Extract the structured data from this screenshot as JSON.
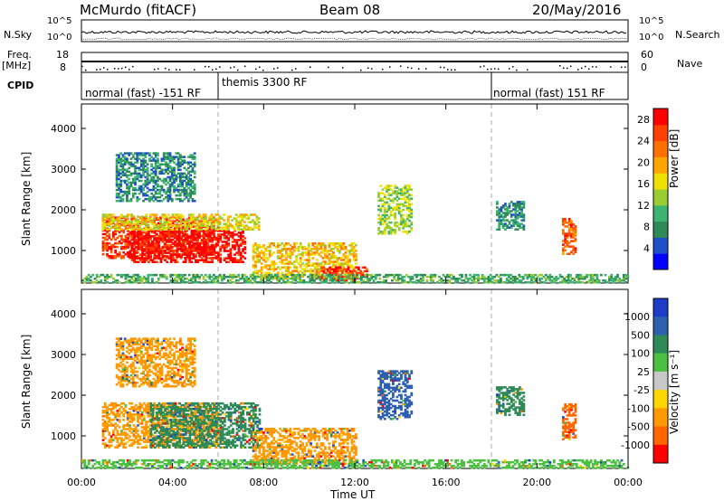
{
  "header": {
    "station": "McMurdo (fitACF)",
    "beam": "Beam 08",
    "date": "20/May/2016"
  },
  "strip_labels": {
    "nsky": "N.Sky",
    "nsky_ticks": [
      "10^5",
      "10^0"
    ],
    "nsearch": "N.Search",
    "nsearch_ticks": [
      "10^5",
      "10^0"
    ],
    "freq": "Freq.",
    "freq_unit": "[MHz]",
    "freq_ticks": [
      "18",
      "8"
    ],
    "nave": "Nave",
    "nave_ticks": [
      "60",
      "0"
    ],
    "cpid": "CPID"
  },
  "modes": [
    {
      "label": "normal (fast) -151 RF",
      "start_hour": 0
    },
    {
      "label": "themis 3300 RF",
      "start_hour": 6
    },
    {
      "label": "normal (fast) 151 RF",
      "start_hour": 18
    }
  ],
  "colors": {
    "power": [
      "#0000ff",
      "#1e50c8",
      "#2e8b57",
      "#3cb371",
      "#9acd32",
      "#f0e000",
      "#ffa500",
      "#ff7000",
      "#ff4000",
      "#ff0000"
    ],
    "velocity": [
      "#1e3cc8",
      "#2e5fb0",
      "#2e8b57",
      "#4cc040",
      "#c8c8c8",
      "#ffd700",
      "#ff9900",
      "#ff6600",
      "#ff0000"
    ]
  },
  "chart_data": [
    {
      "type": "heatmap",
      "name": "power",
      "xlabel": "",
      "ylabel": "Slant Range [km]",
      "x_ticks": [
        "00:00",
        "04:00",
        "08:00",
        "12:00",
        "16:00",
        "20:00",
        "00:00"
      ],
      "xlim_hours": [
        0,
        24
      ],
      "ylim": [
        200,
        4600
      ],
      "y_ticks": [
        1000,
        2000,
        3000,
        4000
      ],
      "colorbar_label": "Power [dB]",
      "colorbar_ticks": [
        4,
        8,
        12,
        16,
        20,
        24,
        28
      ],
      "colorbar_range": [
        0,
        30
      ],
      "regions": [
        {
          "t": [
            0.9,
            6.0
          ],
          "r": [
            800,
            1800
          ],
          "value": 26
        },
        {
          "t": [
            2.0,
            7.2
          ],
          "r": [
            700,
            1500
          ],
          "value": 29
        },
        {
          "t": [
            0.9,
            7.8
          ],
          "r": [
            1500,
            1900
          ],
          "value": 16
        },
        {
          "t": [
            1.5,
            5.0
          ],
          "r": [
            2200,
            3400
          ],
          "value": 8
        },
        {
          "t": [
            7.5,
            12.0
          ],
          "r": [
            300,
            1200
          ],
          "value": 18
        },
        {
          "t": [
            10.5,
            12.5
          ],
          "r": [
            250,
            600
          ],
          "value": 26
        },
        {
          "t": [
            13.0,
            14.5
          ],
          "r": [
            1400,
            2600
          ],
          "value": 14
        },
        {
          "t": [
            18.2,
            19.4
          ],
          "r": [
            1500,
            2200
          ],
          "value": 8
        },
        {
          "t": [
            21.1,
            21.7
          ],
          "r": [
            900,
            1800
          ],
          "value": 24
        },
        {
          "t": [
            0.0,
            24.0
          ],
          "r": [
            200,
            400
          ],
          "value": 10
        }
      ]
    },
    {
      "type": "heatmap",
      "name": "velocity",
      "xlabel": "Time UT",
      "ylabel": "Slant Range [km]",
      "x_ticks": [
        "00:00",
        "04:00",
        "08:00",
        "12:00",
        "16:00",
        "20:00",
        "00:00"
      ],
      "xlim_hours": [
        0,
        24
      ],
      "ylim": [
        200,
        4600
      ],
      "y_ticks": [
        1000,
        2000,
        3000,
        4000
      ],
      "colorbar_label": "Velocity [m s⁻¹]",
      "colorbar_ticks": [
        "1000",
        "500",
        "100",
        "25",
        "-25",
        "-100",
        "-500",
        "-1000"
      ],
      "regions": [
        {
          "t": [
            0.9,
            6.0
          ],
          "r": [
            700,
            1800
          ],
          "value": -100
        },
        {
          "t": [
            3.0,
            7.8
          ],
          "r": [
            700,
            1800
          ],
          "value": 100
        },
        {
          "t": [
            1.5,
            5.0
          ],
          "r": [
            2200,
            3400
          ],
          "value": -100
        },
        {
          "t": [
            7.5,
            12.0
          ],
          "r": [
            300,
            1200
          ],
          "value": -100
        },
        {
          "t": [
            13.0,
            14.5
          ],
          "r": [
            1400,
            2600
          ],
          "value": 500
        },
        {
          "t": [
            18.2,
            19.4
          ],
          "r": [
            1500,
            2200
          ],
          "value": 100
        },
        {
          "t": [
            21.1,
            21.7
          ],
          "r": [
            900,
            1800
          ],
          "value": -500
        },
        {
          "t": [
            0.0,
            24.0
          ],
          "r": [
            200,
            400
          ],
          "value": 25
        }
      ]
    }
  ]
}
